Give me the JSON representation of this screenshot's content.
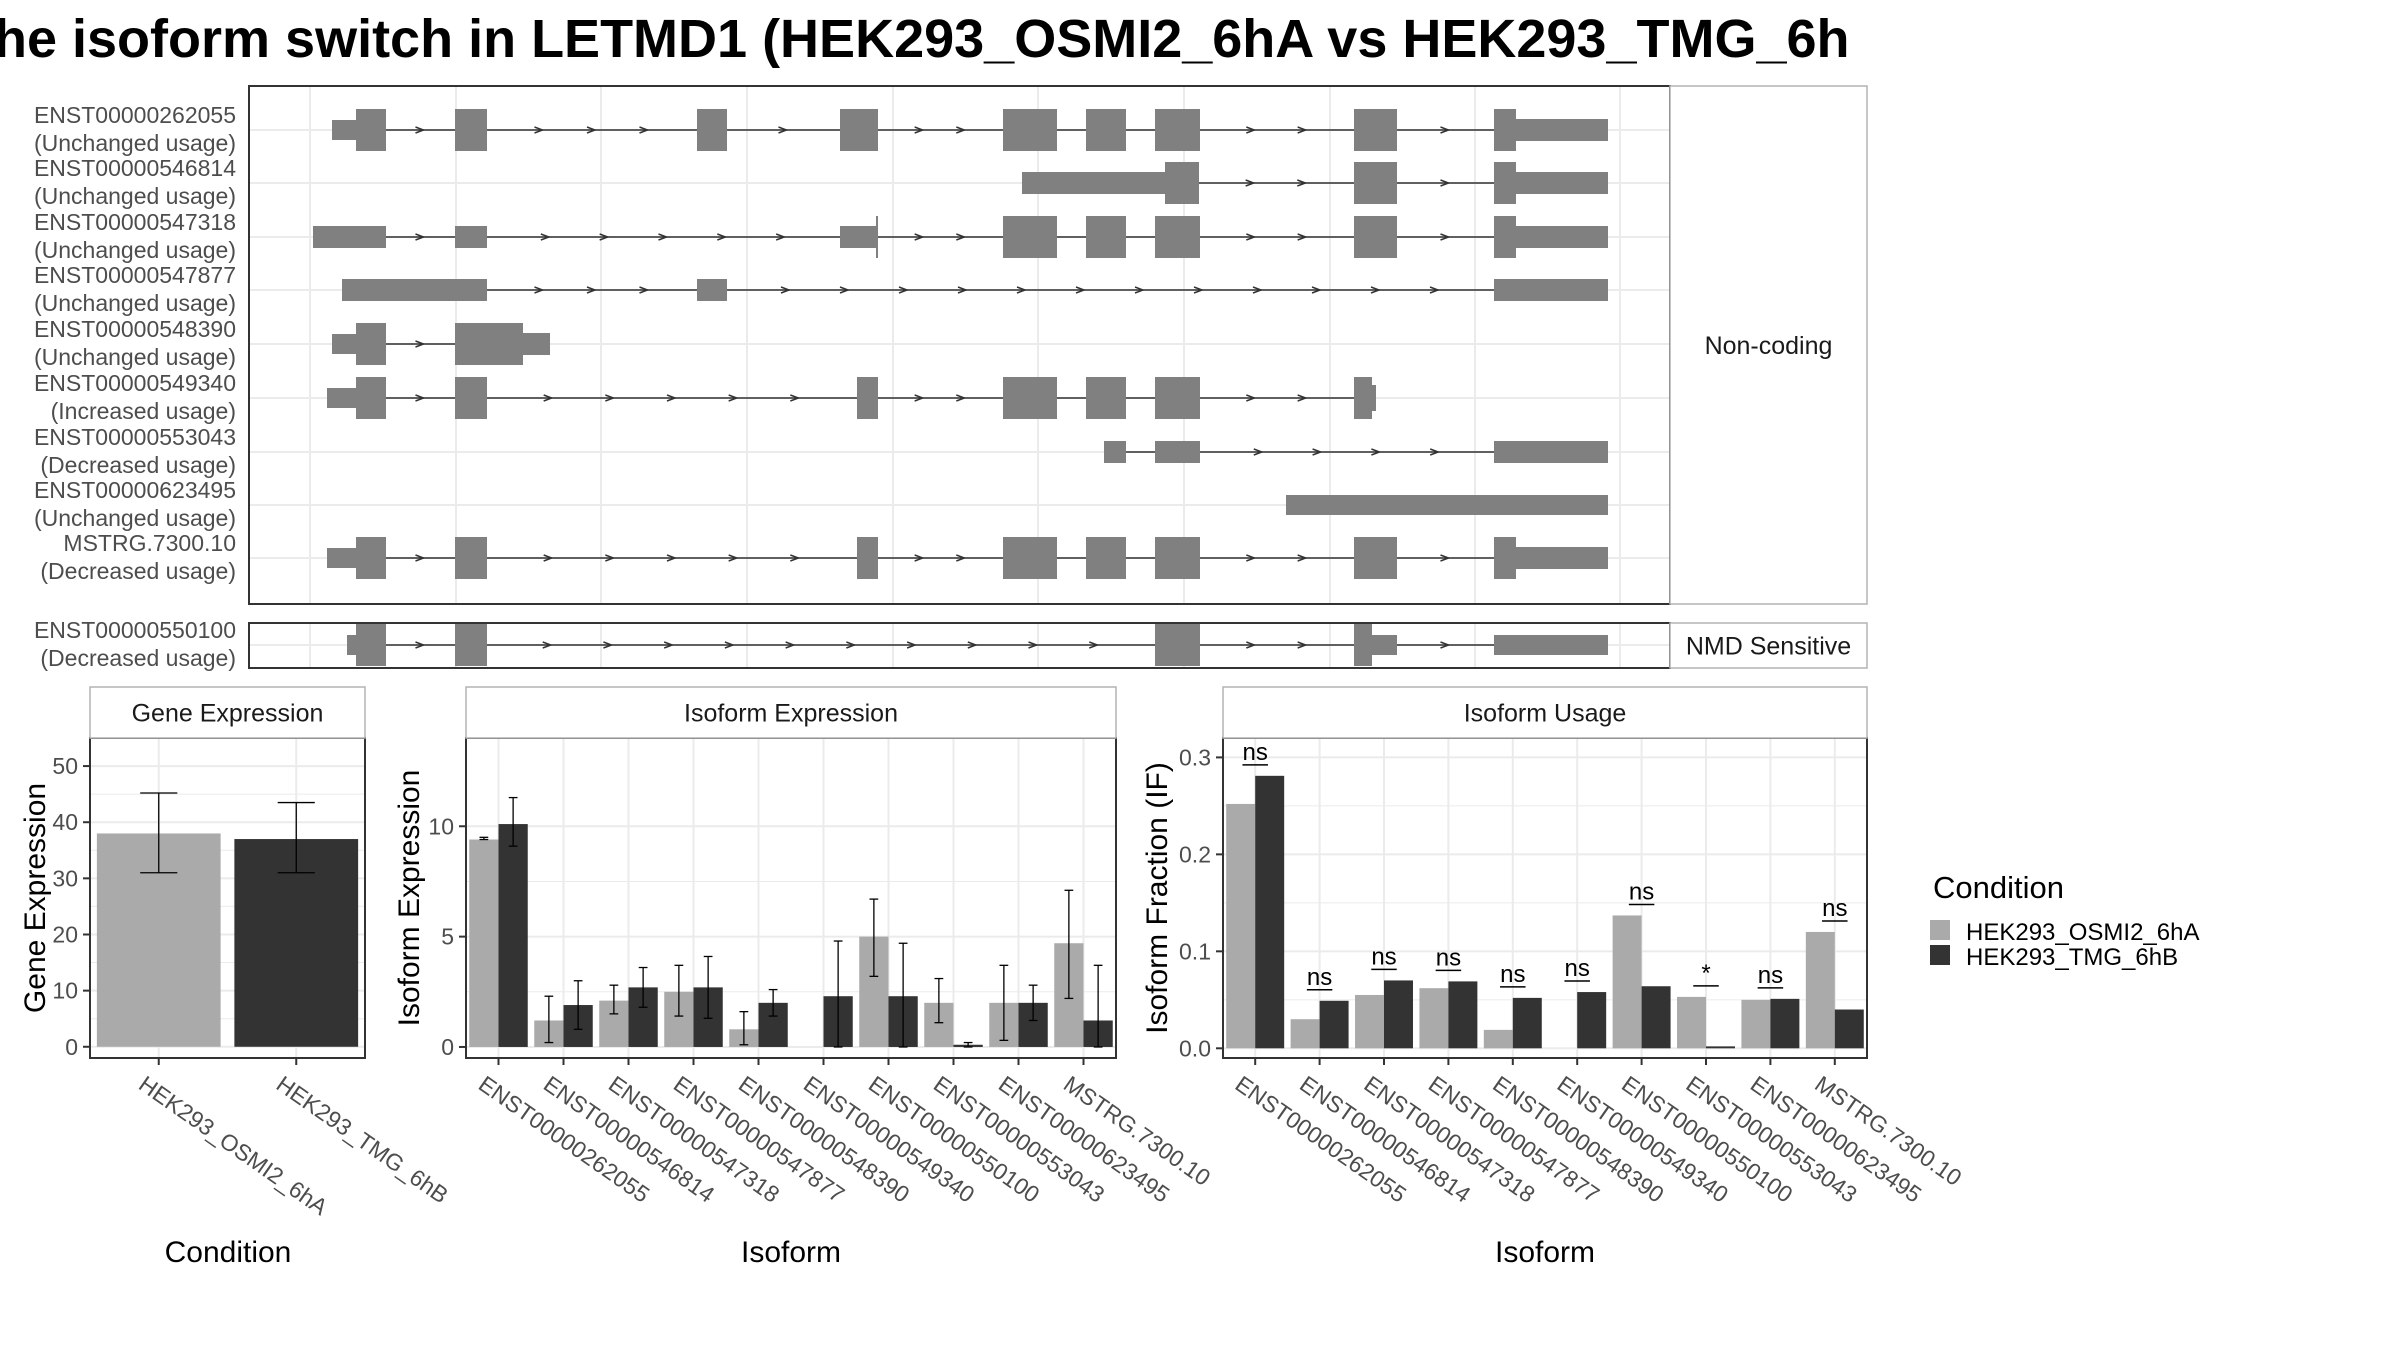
{
  "title": "he isoform switch in LETMD1 (HEK293_OSMI2_6hA vs HEK293_TMG_6h",
  "colors": {
    "cond1": "#aaaaaa",
    "cond2": "#333333",
    "exon": "#808080",
    "grid": "#ebebeb",
    "panel_border": "#333333",
    "strip_fill": "#ffffff"
  },
  "transcripts": {
    "groups": [
      {
        "label": "Non-coding",
        "rows": [
          {
            "id": "ENST00000262055",
            "usage": "(Unchanged usage)"
          },
          {
            "id": "ENST00000546814",
            "usage": "(Unchanged usage)"
          },
          {
            "id": "ENST00000547318",
            "usage": "(Unchanged usage)"
          },
          {
            "id": "ENST00000547877",
            "usage": "(Unchanged usage)"
          },
          {
            "id": "ENST00000548390",
            "usage": "(Unchanged usage)"
          },
          {
            "id": "ENST00000549340",
            "usage": "(Increased usage)"
          },
          {
            "id": "ENST00000553043",
            "usage": "(Decreased usage)"
          },
          {
            "id": "ENST00000623495",
            "usage": "(Unchanged usage)"
          },
          {
            "id": "MSTRG.7300.10",
            "usage": "(Decreased usage)"
          }
        ]
      },
      {
        "label": "NMD Sensitive",
        "rows": [
          {
            "id": "ENST00000550100",
            "usage": "(Decreased usage)"
          }
        ]
      }
    ]
  },
  "chart_data": [
    {
      "type": "bar",
      "title": "Gene Expression",
      "xlabel": "Condition",
      "ylabel": "Gene Expression",
      "ylim": [
        -2,
        55
      ],
      "yticks": [
        0,
        10,
        20,
        30,
        40,
        50
      ],
      "categories": [
        "HEK293_OSMI2_6hA",
        "HEK293_TMG_6hB"
      ],
      "values": [
        38.0,
        37.0
      ],
      "error_low": [
        31.0,
        31.0
      ],
      "error_high": [
        45.2,
        43.5
      ]
    },
    {
      "type": "bar",
      "title": "Isoform Expression",
      "xlabel": "Isoform",
      "ylabel": "Isoform Expression",
      "ylim": [
        -0.5,
        14.0
      ],
      "yticks": [
        0,
        5,
        10
      ],
      "categories": [
        "ENST00000262055",
        "ENST00000546814",
        "ENST00000547318",
        "ENST00000547877",
        "ENST00000548390",
        "ENST00000549340",
        "ENST00000550100",
        "ENST00000553043",
        "ENST00000623495",
        "MSTRG.7300.10"
      ],
      "series": [
        {
          "name": "HEK293_OSMI2_6hA",
          "values": [
            9.4,
            1.2,
            2.1,
            2.5,
            0.8,
            0.0,
            5.0,
            2.0,
            2.0,
            4.7
          ],
          "error_low": [
            9.4,
            0.2,
            1.5,
            1.4,
            0.1,
            0.0,
            3.2,
            1.1,
            0.3,
            2.2
          ],
          "error_high": [
            9.5,
            2.3,
            2.8,
            3.7,
            1.6,
            0.0,
            6.7,
            3.1,
            3.7,
            7.1
          ]
        },
        {
          "name": "HEK293_TMG_6hB",
          "values": [
            10.1,
            1.9,
            2.7,
            2.7,
            2.0,
            2.3,
            2.3,
            0.1,
            2.0,
            1.2
          ],
          "error_low": [
            9.1,
            0.8,
            1.8,
            1.3,
            1.4,
            0.0,
            0.0,
            0.0,
            1.2,
            0.0
          ],
          "error_high": [
            11.3,
            3.0,
            3.6,
            4.1,
            2.6,
            4.8,
            4.7,
            0.2,
            2.8,
            3.7
          ]
        }
      ]
    },
    {
      "type": "bar",
      "title": "Isoform Usage",
      "xlabel": "Isoform",
      "ylabel": "Isoform Fraction (IF)",
      "ylim": [
        -0.01,
        0.32
      ],
      "yticks": [
        0.0,
        0.1,
        0.2,
        0.3
      ],
      "ytick_labels": [
        "0.0",
        "0.1",
        "0.2",
        "0.3"
      ],
      "categories": [
        "ENST00000262055",
        "ENST00000546814",
        "ENST00000547318",
        "ENST00000547877",
        "ENST00000548390",
        "ENST00000549340",
        "ENST00000550100",
        "ENST00000553043",
        "ENST00000623495",
        "MSTRG.7300.10"
      ],
      "series": [
        {
          "name": "HEK293_OSMI2_6hA",
          "values": [
            0.252,
            0.03,
            0.055,
            0.062,
            0.019,
            0.0,
            0.137,
            0.053,
            0.05,
            0.12
          ]
        },
        {
          "name": "HEK293_TMG_6hB",
          "values": [
            0.281,
            0.049,
            0.07,
            0.069,
            0.052,
            0.058,
            0.064,
            0.002,
            0.051,
            0.04
          ]
        }
      ],
      "significance": [
        "ns",
        "ns",
        "ns",
        "ns",
        "ns",
        "ns",
        "ns",
        "*",
        "ns",
        "ns"
      ]
    }
  ],
  "legend": {
    "title": "Condition",
    "items": [
      "HEK293_OSMI2_6hA",
      "HEK293_TMG_6hB"
    ]
  }
}
